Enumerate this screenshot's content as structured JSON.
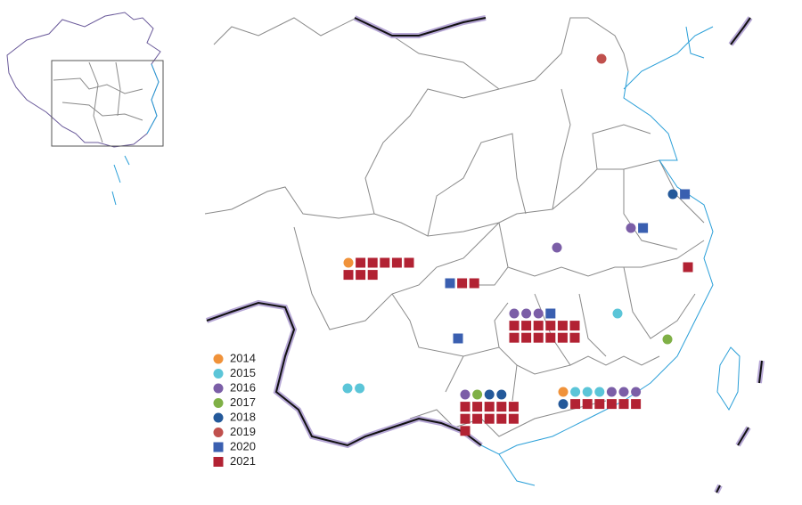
{
  "legend": [
    {
      "label": "2014",
      "color": "#f0923a",
      "shape": "circle"
    },
    {
      "label": "2015",
      "color": "#5bc5d8",
      "shape": "circle"
    },
    {
      "label": "2016",
      "color": "#7b5ea7",
      "shape": "circle"
    },
    {
      "label": "2017",
      "color": "#7fb046",
      "shape": "circle"
    },
    {
      "label": "2018",
      "color": "#24599a",
      "shape": "circle"
    },
    {
      "label": "2019",
      "color": "#c0504d",
      "shape": "circle"
    },
    {
      "label": "2020",
      "color": "#3a5fb0",
      "shape": "square"
    },
    {
      "label": "2021",
      "color": "#b22233",
      "shape": "square"
    }
  ],
  "groups": [
    {
      "counts": [
        0,
        0,
        0,
        0,
        0,
        1,
        0,
        0
      ]
    },
    {
      "counts": [
        0,
        0,
        0,
        0,
        1,
        0,
        1,
        0
      ]
    },
    {
      "counts": [
        0,
        0,
        1,
        0,
        0,
        0,
        1,
        0
      ]
    },
    {
      "counts": [
        0,
        0,
        0,
        0,
        0,
        0,
        0,
        1
      ]
    },
    {
      "counts": [
        0,
        0,
        1,
        0,
        0,
        0,
        0,
        0
      ]
    },
    {
      "counts": [
        1,
        0,
        0,
        0,
        0,
        0,
        0,
        8
      ]
    },
    {
      "counts": [
        0,
        0,
        0,
        0,
        0,
        0,
        1,
        2
      ]
    },
    {
      "counts": [
        0,
        0,
        3,
        0,
        0,
        0,
        1,
        12
      ]
    },
    {
      "counts": [
        0,
        1,
        0,
        0,
        0,
        0,
        0,
        0
      ]
    },
    {
      "counts": [
        0,
        0,
        0,
        0,
        0,
        0,
        1,
        0
      ]
    },
    {
      "counts": [
        0,
        0,
        0,
        1,
        0,
        0,
        0,
        0
      ]
    },
    {
      "counts": [
        0,
        2,
        0,
        0,
        0,
        0,
        0,
        0
      ]
    },
    {
      "counts": [
        0,
        0,
        1,
        1,
        2,
        0,
        0,
        11
      ]
    },
    {
      "counts": [
        1,
        3,
        3,
        0,
        1,
        0,
        0,
        6
      ]
    }
  ]
}
